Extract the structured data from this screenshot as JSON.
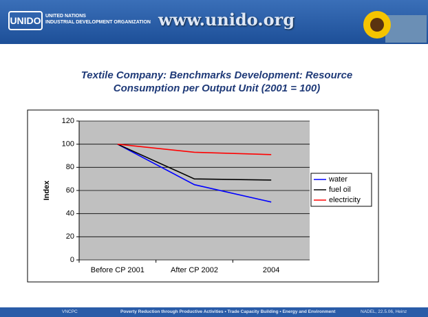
{
  "header": {
    "logo": "UNIDO",
    "org_line1": "UNITED NATIONS",
    "org_line2": "INDUSTRIAL DEVELOPMENT ORGANIZATION",
    "url": "www.unido.org"
  },
  "chart_data": {
    "type": "line",
    "title": "Textile Company: Benchmarks Development: Resource Consumption per Output Unit (2001 = 100)",
    "y_label": "Index",
    "categories": [
      "Before CP 2001",
      "After CP 2002",
      "2004"
    ],
    "series": [
      {
        "name": "water",
        "color": "#0000ff",
        "values": [
          100,
          65,
          50
        ]
      },
      {
        "name": "fuel oil",
        "color": "#000000",
        "values": [
          100,
          70,
          69
        ]
      },
      {
        "name": "electricity",
        "color": "#ff0000",
        "values": [
          100,
          93,
          91
        ]
      }
    ],
    "ylim": [
      0,
      120
    ],
    "yticks": [
      0,
      20,
      40,
      60,
      80,
      100,
      120
    ],
    "grid": true,
    "legend": "right",
    "plot_background": "#c0c0c0"
  },
  "footer": {
    "left": "VNCPC",
    "center": "Poverty Reduction through Productive Activities  •  Trade Capacity Building  •  Energy and Environment",
    "right": "NADEL, 22.5.06, Heinz"
  }
}
